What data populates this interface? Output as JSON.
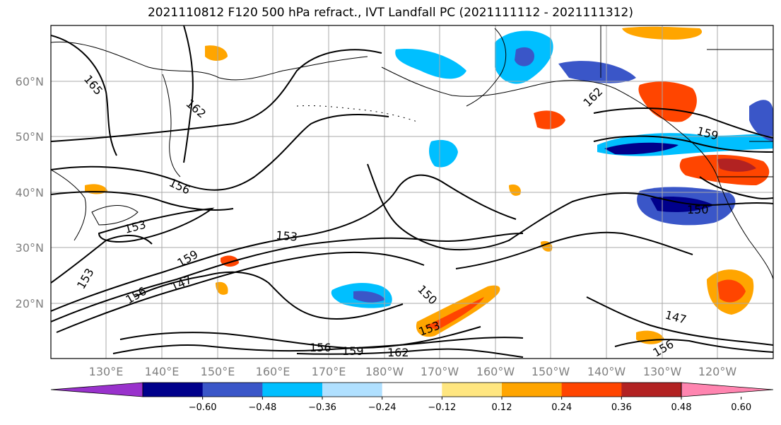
{
  "title": "2021110812 F120 500 hPa refract., IVT Landfall PC (2021111112 - 2021111312)",
  "lat_labels": [
    "60°N",
    "50°N",
    "40°N",
    "30°N",
    "20°N"
  ],
  "lon_labels": [
    "130°E",
    "140°E",
    "150°E",
    "160°E",
    "170°E",
    "180°W",
    "170°W",
    "160°W",
    "150°W",
    "140°W",
    "130°W",
    "120°W"
  ],
  "contour_labels": [
    "165",
    "162",
    "162",
    "159",
    "156",
    "153",
    "153",
    "153",
    "159",
    "156",
    "147",
    "150",
    "153",
    "156",
    "159",
    "162",
    "150",
    "147",
    "156"
  ],
  "colorbar": {
    "tick_labels": [
      "−0.60",
      "−0.48",
      "−0.36",
      "−0.24",
      "−0.12",
      "0.12",
      "0.24",
      "0.36",
      "0.48",
      "0.60"
    ],
    "colors": [
      "#9932cc",
      "#00008b",
      "#3a56c8",
      "#00bfff",
      "#b0e0ff",
      "#ffffff",
      "#ffe680",
      "#ffa500",
      "#ff4500",
      "#b22222",
      "#ff85b0"
    ]
  },
  "colors": {
    "negative_strong": "#00008b",
    "negative_mid": "#3a56c8",
    "negative_light": "#00bfff",
    "negative_pale": "#b0e0ff",
    "positive_pale": "#ffe680",
    "positive_light": "#ffa500",
    "positive_mid": "#ff4500",
    "positive_strong": "#b22222"
  }
}
